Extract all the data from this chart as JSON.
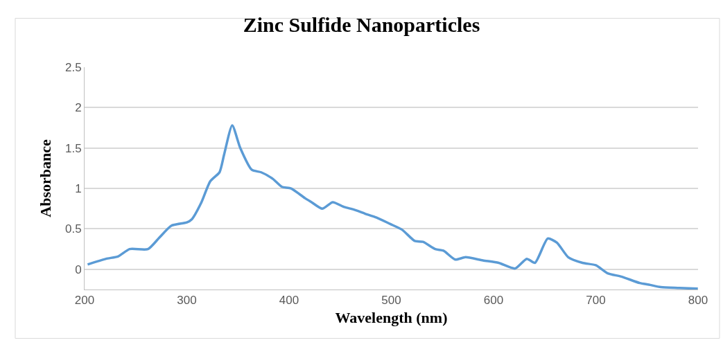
{
  "chart_data": {
    "type": "line",
    "title": "Zinc Sulfide Nanoparticles",
    "xlabel": "Wavelength (nm)",
    "ylabel": "Absorbance",
    "x": [
      203,
      221,
      233,
      244,
      262,
      273,
      285,
      300,
      305,
      314,
      323,
      332,
      336.5,
      344.4,
      352.3,
      363.6,
      372.7,
      384,
      393,
      402,
      415.6,
      422,
      432.5,
      442.7,
      454,
      463,
      474,
      485.6,
      499,
      510.5,
      523,
      531,
      543,
      551,
      562.5,
      572.6,
      589.6,
      605,
      621,
      632.5,
      640.5,
      653,
      662,
      673,
      687,
      700,
      711.6,
      725,
      743,
      752,
      763.6,
      781.7,
      799.8
    ],
    "series": [
      {
        "color": "#5b9bd5",
        "values": [
          0.06,
          0.13,
          0.16,
          0.25,
          0.25,
          0.39,
          0.54,
          0.58,
          0.62,
          0.82,
          1.09,
          1.2,
          1.42,
          1.78,
          1.5,
          1.23,
          1.2,
          1.12,
          1.02,
          1.0,
          0.88,
          0.83,
          0.75,
          0.83,
          0.77,
          0.74,
          0.69,
          0.64,
          0.56,
          0.49,
          0.35,
          0.34,
          0.25,
          0.23,
          0.12,
          0.15,
          0.11,
          0.08,
          0.01,
          0.13,
          0.08,
          0.38,
          0.33,
          0.15,
          0.08,
          0.05,
          -0.05,
          -0.09,
          -0.17,
          -0.19,
          -0.22,
          -0.23,
          -0.24
        ]
      }
    ],
    "xlim": [
      200,
      800
    ],
    "xticks": [
      200,
      300,
      400,
      500,
      600,
      700,
      800
    ],
    "ylim": [
      -0.25,
      2.5
    ],
    "yticks": [
      0,
      0.5,
      1,
      1.5,
      2,
      2.5
    ],
    "grid": "y",
    "marker": "none",
    "line_style": "solid"
  }
}
